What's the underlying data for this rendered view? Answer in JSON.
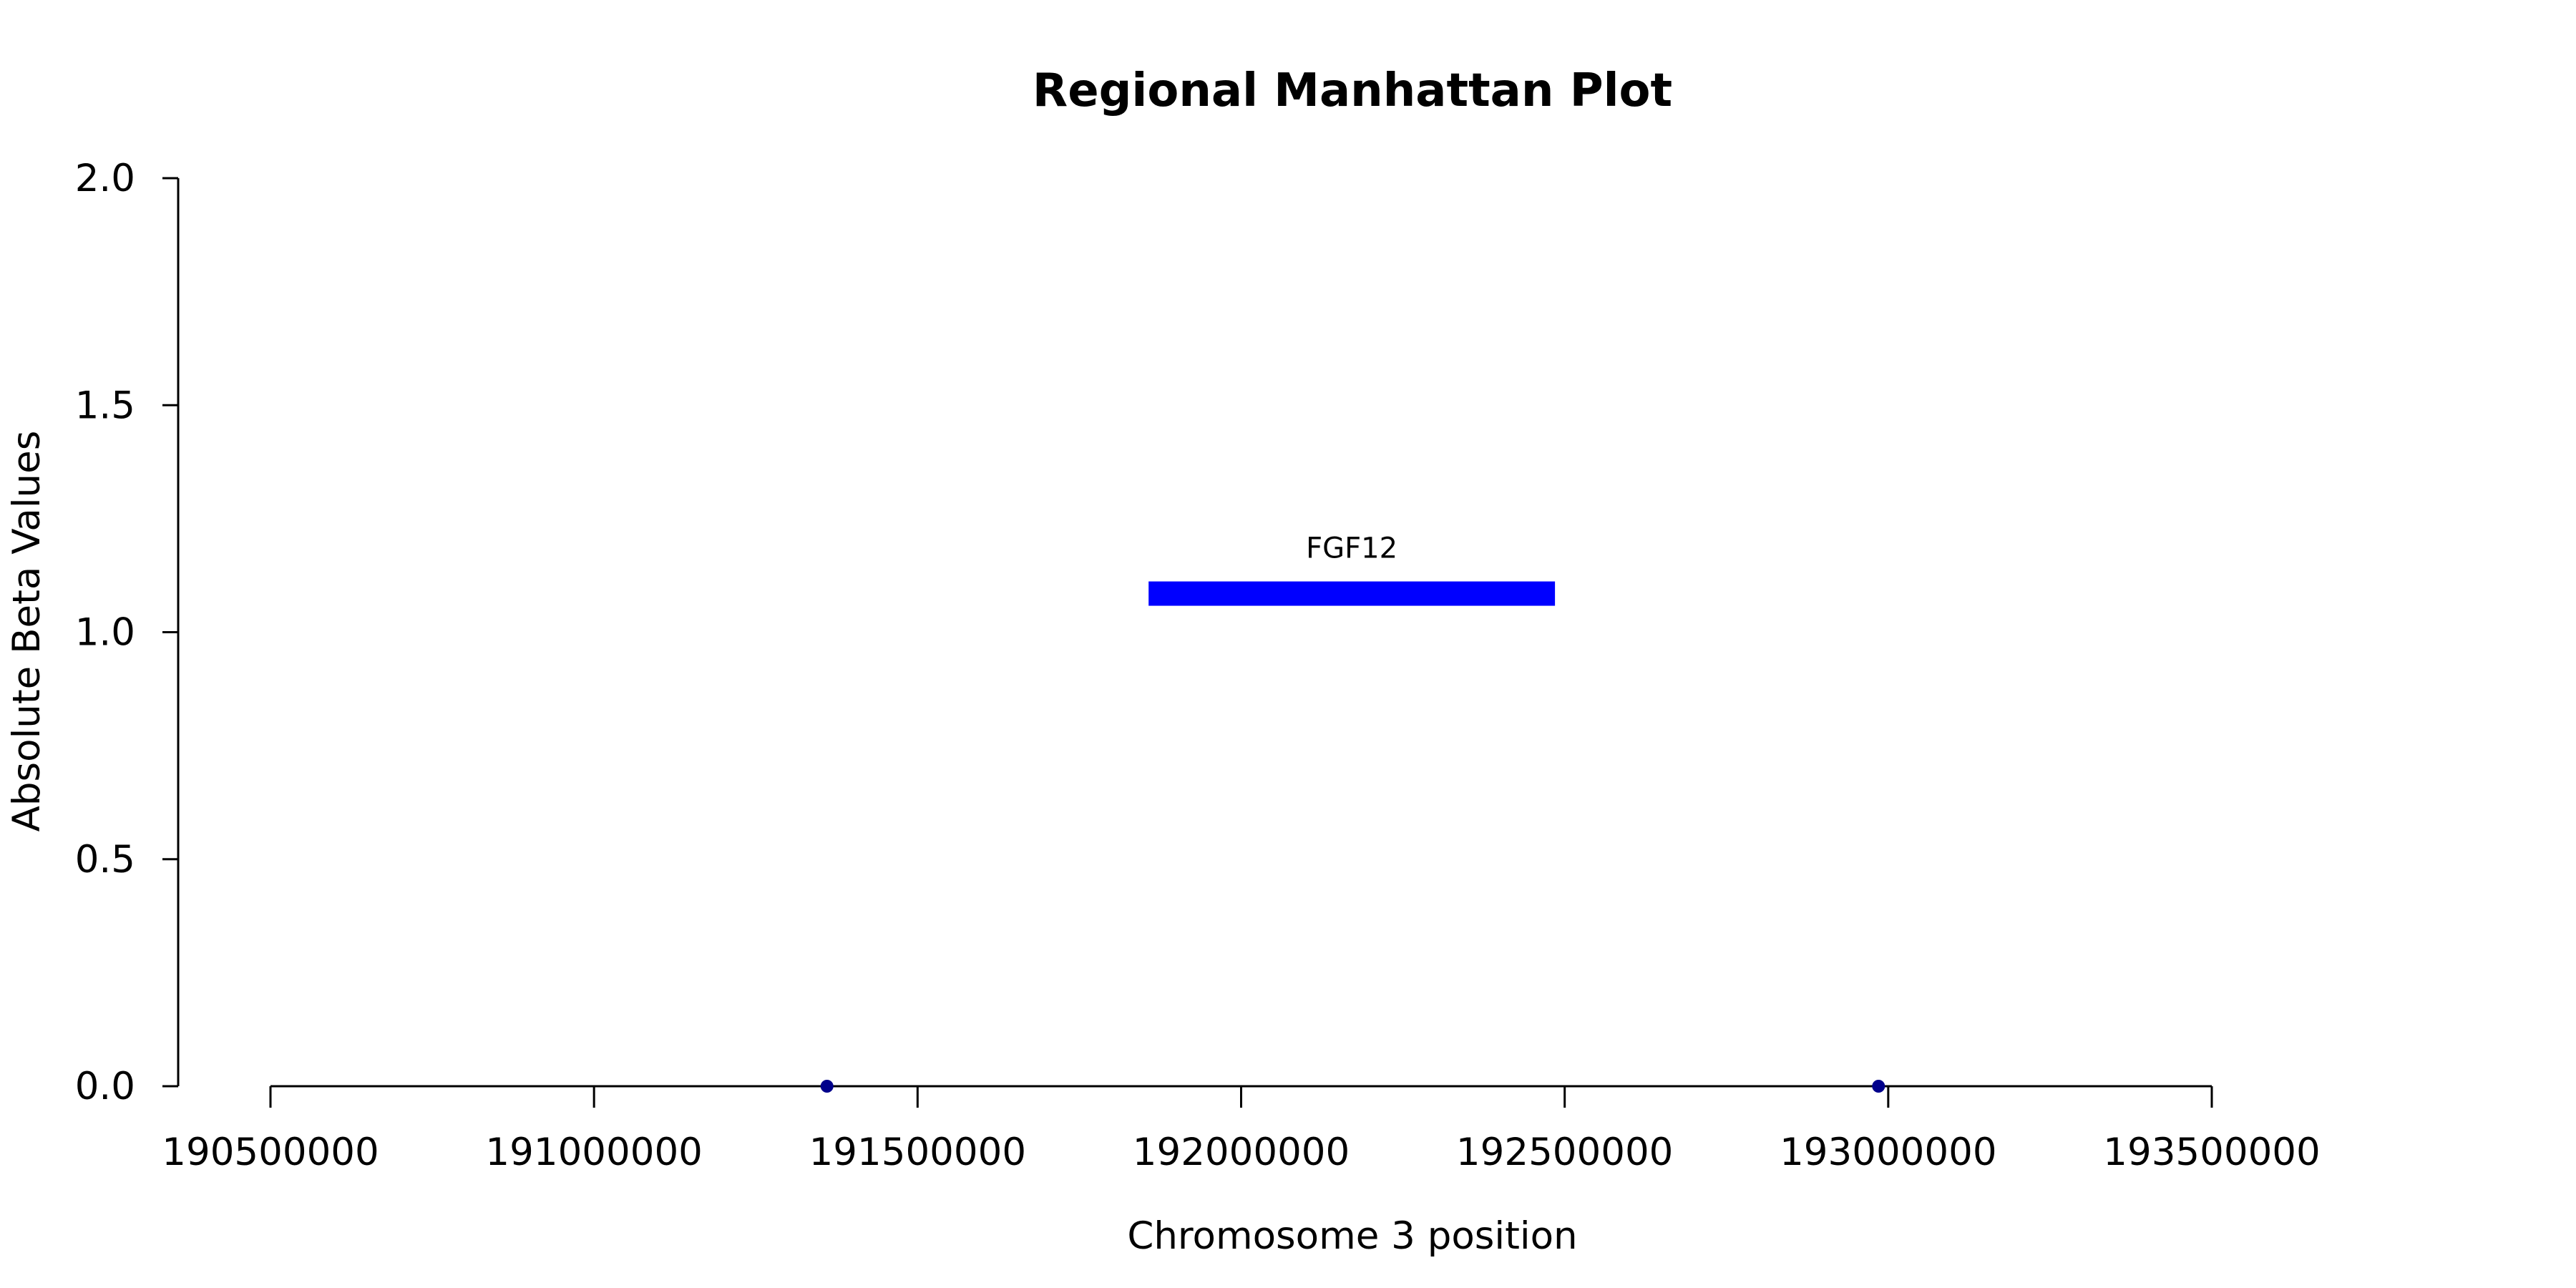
{
  "chart_data": {
    "type": "scatter",
    "title": "Regional Manhattan Plot",
    "xlabel": "Chromosome 3 position",
    "ylabel": "Absolute Beta Values",
    "xlim": [
      190500000,
      193500000
    ],
    "ylim": [
      0,
      2
    ],
    "x_ticks": [
      190500000,
      191000000,
      191500000,
      192000000,
      192500000,
      193000000,
      193500000
    ],
    "y_ticks": [
      0.0,
      0.5,
      1.0,
      1.5,
      2.0
    ],
    "y_tick_labels": [
      "0.0",
      "0.5",
      "1.0",
      "1.5",
      "2.0"
    ],
    "series": [
      {
        "points": [
          {
            "x": 191360000,
            "y": 0.0
          },
          {
            "x": 192985000,
            "y": 0.0
          }
        ],
        "color": "#00008b"
      }
    ],
    "genes": [
      {
        "name": "FGF12",
        "start": 191857000,
        "end": 192485000,
        "y": 1.085,
        "color": "#0000ff"
      }
    ],
    "grid": false
  }
}
